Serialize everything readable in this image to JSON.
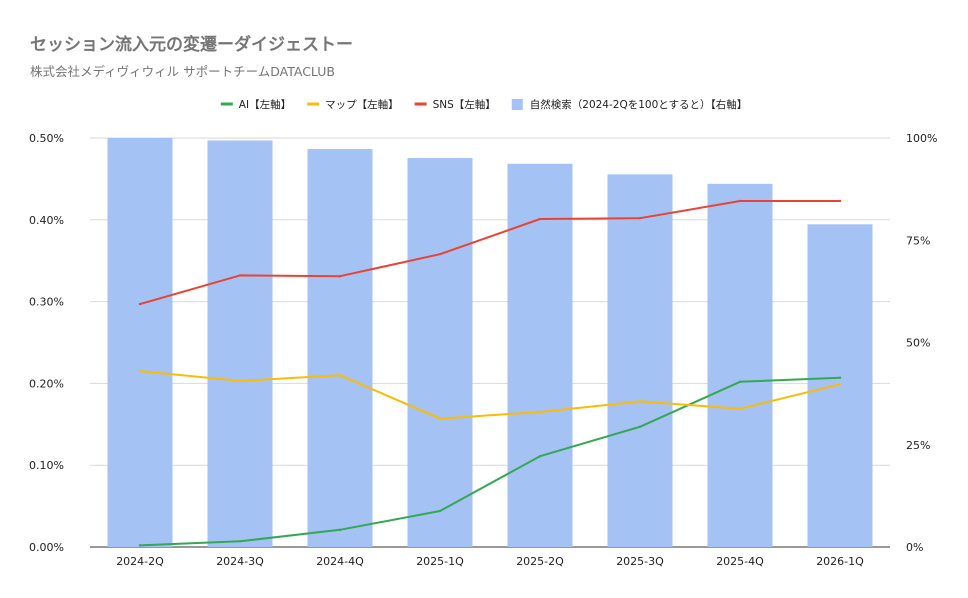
{
  "chart_data": {
    "type": "bar",
    "title": "セッション流入元の変遷ーダイジェストー",
    "subtitle": "株式会社メディヴィウィル サポートチームDATACLUB",
    "categories": [
      "2024-2Q",
      "2024-3Q",
      "2024-4Q",
      "2025-1Q",
      "2025-2Q",
      "2025-3Q",
      "2025-4Q",
      "2026-1Q"
    ],
    "y_left": {
      "ticks": [
        "0.00%",
        "0.10%",
        "0.20%",
        "0.30%",
        "0.40%",
        "0.50%"
      ],
      "min": 0,
      "max": 0.5,
      "unit": "%"
    },
    "y_right": {
      "ticks": [
        "0%",
        "25%",
        "50%",
        "75%",
        "100%"
      ],
      "min": 0,
      "max": 100
    },
    "grid": true,
    "legend_position": "top-center",
    "series": [
      {
        "name": "AI【左軸】",
        "kind": "line",
        "axis": "left",
        "color": "#34a853",
        "values": [
          0.002,
          0.007,
          0.021,
          0.044,
          0.111,
          0.147,
          0.202,
          0.207
        ]
      },
      {
        "name": "マップ【左軸】",
        "kind": "line",
        "axis": "left",
        "color": "#fbbc04",
        "values": [
          0.215,
          0.203,
          0.21,
          0.157,
          0.165,
          0.178,
          0.169,
          0.199
        ]
      },
      {
        "name": "SNS【左軸】",
        "kind": "line",
        "axis": "left",
        "color": "#ea4335",
        "values": [
          0.297,
          0.332,
          0.331,
          0.358,
          0.401,
          0.402,
          0.423,
          0.423
        ]
      },
      {
        "name": "自然検索（2024-2Qを100とすると）【右軸】",
        "kind": "bar",
        "axis": "right",
        "color": "#a4c2f4",
        "values": [
          100,
          99.4,
          97.3,
          95.1,
          93.7,
          91.1,
          88.8,
          78.9
        ]
      }
    ]
  }
}
